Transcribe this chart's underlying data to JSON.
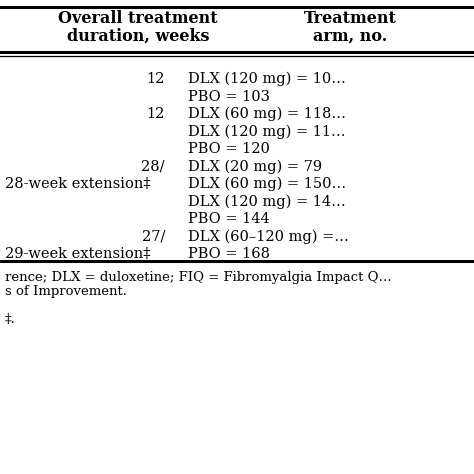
{
  "col1_header_line1": "Overall treatment",
  "col1_header_line2": "duration, weeks",
  "col2_header_line1": "Treatment",
  "col2_header_line2": "arm, no.",
  "body_lines": [
    {
      "c1": "12",
      "c1_align": "right",
      "c2": "DLX (120 mg) = 10…"
    },
    {
      "c1": "",
      "c1_align": "right",
      "c2": "PBO = 103"
    },
    {
      "c1": "12",
      "c1_align": "right",
      "c2": "DLX (60 mg) = 118…"
    },
    {
      "c1": "",
      "c1_align": "right",
      "c2": "DLX (120 mg) = 11…"
    },
    {
      "c1": "",
      "c1_align": "right",
      "c2": "PBO = 120"
    },
    {
      "c1": "28/",
      "c1_align": "right",
      "c2": "DLX (20 mg) = 79"
    },
    {
      "c1": "28-week extension‡",
      "c1_align": "left",
      "c2": "DLX (60 mg) = 150…"
    },
    {
      "c1": "",
      "c1_align": "right",
      "c2": "DLX (120 mg) = 14…"
    },
    {
      "c1": "",
      "c1_align": "right",
      "c2": "PBO = 144"
    },
    {
      "c1": "27/",
      "c1_align": "right",
      "c2": "DLX (60–120 mg) =…"
    },
    {
      "c1": "29-week extension‡",
      "c1_align": "left",
      "c2": "PBO = 168"
    }
  ],
  "footnote_line1": "rence; DLX = duloxetine; FIQ = Fibromyalgia Impact Q…",
  "footnote_line2": "s of Improvement.",
  "footnote_line3": "‡.",
  "bg_color": "#ffffff",
  "text_color": "#000000",
  "header_fontsize": 11.5,
  "body_fontsize": 10.5,
  "footnote_fontsize": 9.5
}
